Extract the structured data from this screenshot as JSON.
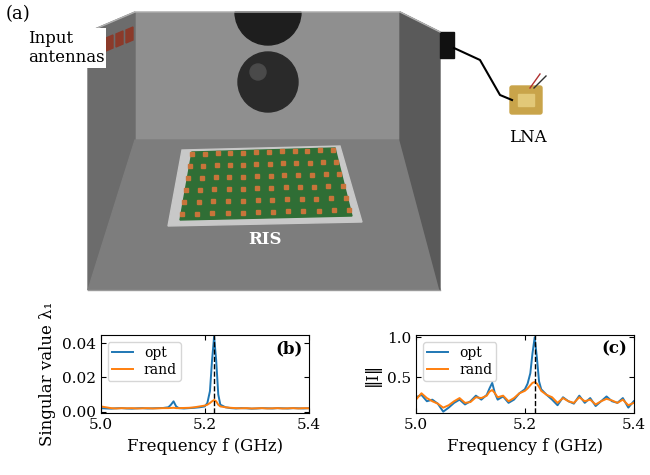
{
  "schematic": {
    "panel_label": "(a)",
    "labels": {
      "antennas": "Input\nantennas",
      "ris": "RIS",
      "amplifier": "LNA"
    }
  },
  "chart_data": [
    {
      "type": "line",
      "panel_label": "(b)",
      "x_label": "Frequency f (GHz)",
      "y_label": "Singular value λ₁",
      "x": [
        5.0,
        5.01,
        5.02,
        5.03,
        5.04,
        5.05,
        5.06,
        5.07,
        5.08,
        5.09,
        5.1,
        5.11,
        5.12,
        5.13,
        5.135,
        5.14,
        5.145,
        5.15,
        5.16,
        5.17,
        5.18,
        5.19,
        5.2,
        5.205,
        5.21,
        5.214,
        5.218,
        5.222,
        5.226,
        5.23,
        5.24,
        5.25,
        5.26,
        5.27,
        5.28,
        5.29,
        5.3,
        5.31,
        5.32,
        5.33,
        5.34,
        5.35,
        5.36,
        5.37,
        5.38,
        5.39,
        5.4
      ],
      "series": [
        {
          "name": "opt",
          "color": "#1f77b4",
          "values": [
            0.002,
            0.0018,
            0.0017,
            0.0019,
            0.002,
            0.0018,
            0.0017,
            0.0019,
            0.002,
            0.0018,
            0.0019,
            0.002,
            0.0021,
            0.0025,
            0.004,
            0.006,
            0.003,
            0.002,
            0.0018,
            0.002,
            0.0022,
            0.0025,
            0.003,
            0.005,
            0.012,
            0.03,
            0.044,
            0.03,
            0.01,
            0.004,
            0.0025,
            0.002,
            0.0018,
            0.002,
            0.0019,
            0.0017,
            0.0018,
            0.002,
            0.0019,
            0.0018,
            0.002,
            0.0019,
            0.0018,
            0.002,
            0.0019,
            0.0018,
            0.002
          ]
        },
        {
          "name": "rand",
          "color": "#ff7f0e",
          "values": [
            0.003,
            0.0025,
            0.002,
            0.0018,
            0.002,
            0.0019,
            0.002,
            0.0018,
            0.0019,
            0.002,
            0.0018,
            0.0019,
            0.002,
            0.002,
            0.0021,
            0.0022,
            0.002,
            0.002,
            0.0021,
            0.0022,
            0.0025,
            0.003,
            0.0035,
            0.004,
            0.005,
            0.006,
            0.0068,
            0.006,
            0.004,
            0.003,
            0.0025,
            0.0022,
            0.002,
            0.0019,
            0.002,
            0.0018,
            0.0019,
            0.002,
            0.0018,
            0.0019,
            0.002,
            0.0018,
            0.0019,
            0.002,
            0.0018,
            0.002,
            0.0019
          ]
        }
      ],
      "xlim": [
        5.0,
        5.4
      ],
      "xticks": [
        5.0,
        5.2,
        5.4
      ],
      "ylim": [
        -0.001,
        0.045
      ],
      "yticks": [
        {
          "value": 0,
          "label": "0.00"
        },
        {
          "value": 0.02,
          "label": "0.02"
        },
        {
          "value": 0.04,
          "label": "0.04"
        }
      ],
      "vline": 5.218,
      "legend": "upper left"
    },
    {
      "type": "line",
      "panel_label": "(c)",
      "x_label": "Frequency f (GHz)",
      "y_label": "‖I‖",
      "x": [
        5.0,
        5.01,
        5.02,
        5.03,
        5.04,
        5.05,
        5.06,
        5.07,
        5.08,
        5.09,
        5.1,
        5.11,
        5.12,
        5.13,
        5.135,
        5.14,
        5.145,
        5.15,
        5.16,
        5.17,
        5.18,
        5.19,
        5.2,
        5.205,
        5.21,
        5.214,
        5.218,
        5.222,
        5.226,
        5.23,
        5.24,
        5.25,
        5.26,
        5.27,
        5.28,
        5.29,
        5.3,
        5.31,
        5.32,
        5.33,
        5.34,
        5.35,
        5.36,
        5.37,
        5.38,
        5.39,
        5.4
      ],
      "series": [
        {
          "name": "opt",
          "color": "#1f77b4",
          "values": [
            0.25,
            0.28,
            0.2,
            0.22,
            0.17,
            0.07,
            0.12,
            0.18,
            0.22,
            0.16,
            0.2,
            0.27,
            0.22,
            0.28,
            0.36,
            0.43,
            0.3,
            0.22,
            0.26,
            0.18,
            0.22,
            0.3,
            0.35,
            0.42,
            0.55,
            0.8,
            1.0,
            0.75,
            0.45,
            0.35,
            0.28,
            0.22,
            0.15,
            0.25,
            0.2,
            0.17,
            0.27,
            0.18,
            0.24,
            0.14,
            0.2,
            0.26,
            0.2,
            0.18,
            0.24,
            0.12,
            0.2
          ]
        },
        {
          "name": "rand",
          "color": "#ff7f0e",
          "values": [
            0.22,
            0.3,
            0.24,
            0.2,
            0.17,
            0.12,
            0.15,
            0.2,
            0.24,
            0.18,
            0.19,
            0.25,
            0.24,
            0.27,
            0.32,
            0.34,
            0.3,
            0.25,
            0.27,
            0.2,
            0.24,
            0.3,
            0.33,
            0.36,
            0.4,
            0.43,
            0.44,
            0.42,
            0.38,
            0.33,
            0.28,
            0.25,
            0.18,
            0.24,
            0.2,
            0.18,
            0.25,
            0.2,
            0.22,
            0.16,
            0.2,
            0.23,
            0.21,
            0.18,
            0.22,
            0.15,
            0.18
          ]
        }
      ],
      "xlim": [
        5.0,
        5.4
      ],
      "xticks": [
        5.0,
        5.2,
        5.4
      ],
      "ylim": [
        0.05,
        1.03
      ],
      "yticks": [
        0.5,
        1.0
      ],
      "vline": 5.218,
      "legend": "upper left"
    }
  ]
}
